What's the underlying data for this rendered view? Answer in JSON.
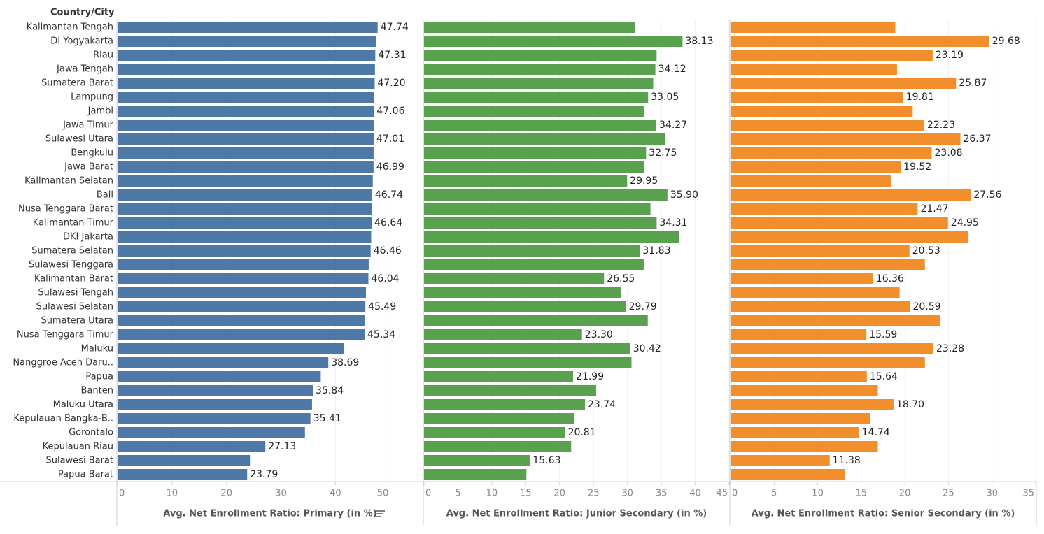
{
  "chart_data": {
    "type": "bar",
    "orientation": "horizontal",
    "category_label": "Country/City",
    "categories": [
      "Kalimantan Tengah",
      "DI Yogyakarta",
      "Riau",
      "Jawa Tengah",
      "Sumatera Barat",
      "Lampung",
      "Jambi",
      "Jawa Timur",
      "Sulawesi Utara",
      "Bengkulu",
      "Jawa Barat",
      "Kalimantan Selatan",
      "Bali",
      "Nusa Tenggara Barat",
      "Kalimantan Timur",
      "DKI Jakarta",
      "Sumatera Selatan",
      "Sulawesi Tenggara",
      "Kalimantan Barat",
      "Sulawesi Tengah",
      "Sulawesi Selatan",
      "Sumatera Utara",
      "Nusa Tenggara Timur",
      "Maluku",
      "Nanggroe Aceh Daru..",
      "Papua",
      "Banten",
      "Maluku Utara",
      "Kepulauan Bangka-B..",
      "Gorontalo",
      "Kepulauan Riau",
      "Sulawesi Barat",
      "Papua Barat"
    ],
    "grid": true,
    "series": [
      {
        "name": "Avg. Net Enrollment Ratio: Primary (in %)",
        "color": "#4e79a7",
        "xlim": [
          0,
          56
        ],
        "xticks": [
          0,
          10,
          20,
          30,
          40,
          50
        ],
        "values": [
          47.74,
          47.5,
          47.31,
          47.25,
          47.2,
          47.1,
          47.06,
          47.03,
          47.01,
          47.0,
          46.99,
          46.85,
          46.74,
          46.7,
          46.64,
          46.55,
          46.46,
          46.1,
          46.04,
          45.6,
          45.49,
          45.4,
          45.34,
          41.5,
          38.69,
          37.3,
          35.84,
          35.7,
          35.41,
          34.4,
          27.13,
          24.3,
          23.79
        ],
        "value_labels": [
          "47.74",
          null,
          "47.31",
          null,
          "47.20",
          null,
          "47.06",
          null,
          "47.01",
          null,
          "46.99",
          null,
          "46.74",
          null,
          "46.64",
          null,
          "46.46",
          null,
          "46.04",
          null,
          "45.49",
          null,
          "45.34",
          null,
          "38.69",
          null,
          "35.84",
          null,
          "35.41",
          null,
          "27.13",
          null,
          "23.79"
        ]
      },
      {
        "name": "Avg. Net Enrollment Ratio: Junior Secondary (in %)",
        "color": "#59a14f",
        "xlim": [
          0,
          45
        ],
        "xticks": [
          0,
          5,
          10,
          15,
          20,
          25,
          30,
          35,
          40,
          45
        ],
        "values": [
          31.1,
          38.13,
          34.3,
          34.12,
          33.8,
          33.05,
          32.4,
          34.27,
          35.6,
          32.75,
          32.5,
          29.95,
          35.9,
          33.4,
          34.31,
          37.6,
          31.83,
          32.4,
          26.55,
          29.0,
          29.79,
          33.0,
          23.3,
          30.42,
          30.6,
          21.99,
          25.4,
          23.74,
          22.1,
          20.81,
          21.7,
          15.63,
          15.1
        ],
        "value_labels": [
          null,
          "38.13",
          null,
          "34.12",
          null,
          "33.05",
          null,
          "34.27",
          null,
          "32.75",
          null,
          "29.95",
          "35.90",
          null,
          "34.31",
          null,
          "31.83",
          null,
          "26.55",
          null,
          "29.79",
          null,
          "23.30",
          "30.42",
          null,
          "21.99",
          null,
          "23.74",
          null,
          "20.81",
          null,
          "15.63",
          null
        ]
      },
      {
        "name": "Avg. Net Enrollment Ratio: Senior Secondary (in %)",
        "color": "#f28e2b",
        "xlim": [
          0,
          35
        ],
        "xticks": [
          0,
          5,
          10,
          15,
          20,
          25,
          30,
          35
        ],
        "values": [
          18.9,
          29.68,
          23.19,
          19.1,
          25.87,
          19.81,
          20.9,
          22.23,
          26.37,
          23.08,
          19.52,
          18.4,
          27.56,
          21.47,
          24.95,
          27.3,
          20.53,
          22.3,
          16.36,
          19.4,
          20.59,
          24.0,
          15.59,
          23.28,
          22.3,
          15.64,
          16.9,
          18.7,
          16.0,
          14.74,
          16.9,
          11.38,
          13.1
        ],
        "value_labels": [
          null,
          "29.68",
          "23.19",
          null,
          "25.87",
          "19.81",
          null,
          "22.23",
          "26.37",
          "23.08",
          "19.52",
          null,
          "27.56",
          "21.47",
          "24.95",
          null,
          "20.53",
          null,
          "16.36",
          null,
          "20.59",
          null,
          "15.59",
          "23.28",
          null,
          "15.64",
          null,
          "18.70",
          null,
          "14.74",
          null,
          "11.38",
          null
        ]
      }
    ]
  }
}
